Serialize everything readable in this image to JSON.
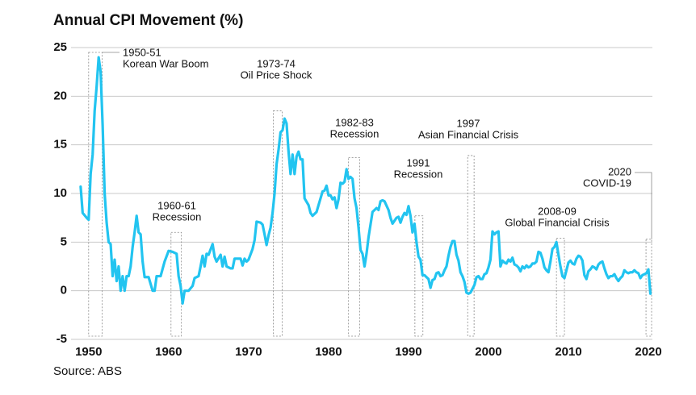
{
  "chart_data": {
    "type": "line",
    "title": "Annual CPI Movement (%)",
    "source": "Source: ABS",
    "xlim": [
      1947.8,
      2020.5
    ],
    "ylim": [
      -5,
      25
    ],
    "xticks": [
      1950,
      1960,
      1970,
      1980,
      1990,
      2000,
      2010,
      2020
    ],
    "yticks": [
      -5,
      0,
      5,
      10,
      15,
      20,
      25
    ],
    "grid": true,
    "series": [
      {
        "color": "#22c4f0",
        "x": [
          1949.0,
          1949.25,
          1949.75,
          1950.0,
          1950.25,
          1950.5,
          1950.75,
          1951.0,
          1951.25,
          1951.5,
          1951.75,
          1952.0,
          1952.25,
          1952.5,
          1952.75,
          1953.0,
          1953.25,
          1953.5,
          1953.75,
          1954.0,
          1954.25,
          1954.5,
          1954.75,
          1955.0,
          1955.25,
          1955.5,
          1955.75,
          1956.0,
          1956.25,
          1956.5,
          1956.75,
          1957.0,
          1957.5,
          1958.0,
          1958.25,
          1958.5,
          1959.0,
          1959.5,
          1960.0,
          1960.5,
          1961.0,
          1961.25,
          1961.5,
          1961.75,
          1962.0,
          1962.5,
          1963.0,
          1963.25,
          1963.75,
          1964.0,
          1964.25,
          1964.5,
          1964.75,
          1965.0,
          1965.5,
          1965.75,
          1966.0,
          1966.5,
          1966.75,
          1967.0,
          1967.25,
          1967.75,
          1968.0,
          1968.25,
          1968.75,
          1969.0,
          1969.25,
          1969.5,
          1969.75,
          1970.0,
          1970.5,
          1970.75,
          1971.0,
          1971.5,
          1971.75,
          1972.0,
          1972.25,
          1972.5,
          1972.75,
          1973.0,
          1973.25,
          1973.5,
          1973.75,
          1974.0,
          1974.25,
          1974.5,
          1974.75,
          1975.0,
          1975.25,
          1975.5,
          1975.75,
          1976.0,
          1976.25,
          1976.5,
          1976.75,
          1977.0,
          1977.5,
          1977.75,
          1978.0,
          1978.5,
          1978.75,
          1979.0,
          1979.25,
          1979.5,
          1979.75,
          1980.0,
          1980.25,
          1980.5,
          1980.75,
          1981.0,
          1981.25,
          1981.5,
          1981.75,
          1982.0,
          1982.25,
          1982.5,
          1982.75,
          1983.0,
          1983.25,
          1983.5,
          1983.75,
          1984.0,
          1984.25,
          1984.5,
          1984.75,
          1985.0,
          1985.25,
          1985.5,
          1985.75,
          1986.0,
          1986.25,
          1986.5,
          1986.75,
          1987.0,
          1987.5,
          1987.75,
          1988.0,
          1988.5,
          1988.75,
          1989.0,
          1989.25,
          1989.5,
          1989.75,
          1990.0,
          1990.25,
          1990.5,
          1990.75,
          1991.0,
          1991.25,
          1991.5,
          1991.75,
          1992.0,
          1992.5,
          1992.75,
          1993.0,
          1993.25,
          1993.5,
          1993.75,
          1994.0,
          1994.25,
          1994.5,
          1994.75,
          1995.0,
          1995.25,
          1995.5,
          1995.75,
          1996.0,
          1996.25,
          1996.5,
          1996.75,
          1997.0,
          1997.25,
          1997.5,
          1997.75,
          1998.0,
          1998.25,
          1998.5,
          1998.75,
          1999.0,
          1999.25,
          1999.5,
          1999.75,
          2000.0,
          2000.25,
          2000.5,
          2000.75,
          2001.0,
          2001.25,
          2001.5,
          2001.75,
          2002.0,
          2002.25,
          2002.5,
          2002.75,
          2003.0,
          2003.25,
          2003.5,
          2003.75,
          2004.0,
          2004.25,
          2004.5,
          2004.75,
          2005.0,
          2005.25,
          2005.5,
          2005.75,
          2006.0,
          2006.25,
          2006.5,
          2006.75,
          2007.0,
          2007.25,
          2007.5,
          2007.75,
          2008.0,
          2008.25,
          2008.5,
          2008.75,
          2009.0,
          2009.25,
          2009.5,
          2009.75,
          2010.0,
          2010.25,
          2010.5,
          2010.75,
          2011.0,
          2011.25,
          2011.5,
          2011.75,
          2012.0,
          2012.25,
          2012.5,
          2012.75,
          2013.0,
          2013.25,
          2013.5,
          2013.75,
          2014.0,
          2014.25,
          2014.5,
          2014.75,
          2015.0,
          2015.25,
          2015.5,
          2015.75,
          2016.0,
          2016.25,
          2016.5,
          2016.75,
          2017.0,
          2017.25,
          2017.5,
          2017.75,
          2018.0,
          2018.25,
          2018.5,
          2018.75,
          2019.0,
          2019.25,
          2019.5,
          2019.75,
          2020.0,
          2020.25
        ],
        "values": [
          10.7,
          8.0,
          7.5,
          7.3,
          12,
          14,
          18.5,
          21,
          24,
          22.5,
          17,
          10,
          7,
          5,
          4.8,
          1.5,
          3.2,
          1.0,
          2.5,
          0,
          1.5,
          0,
          1.5,
          1.5,
          2.5,
          4.5,
          6,
          7.7,
          6,
          5.8,
          3,
          1.4,
          1.4,
          0,
          0,
          1.5,
          1.5,
          3,
          4.1,
          4.0,
          3.8,
          1.5,
          0.5,
          -1.3,
          0,
          0,
          0.5,
          1.3,
          1.5,
          2.5,
          3.6,
          2.5,
          3.8,
          3.7,
          4.8,
          3.5,
          3.0,
          3.7,
          2.5,
          3.5,
          2.5,
          2.3,
          2.3,
          3.3,
          3.3,
          3.3,
          2.6,
          3.3,
          3.0,
          3.2,
          4.3,
          5.2,
          7.1,
          7.0,
          6.8,
          5.8,
          4.7,
          5.7,
          6.5,
          8,
          10,
          13,
          14.5,
          16.3,
          16.5,
          17.7,
          17.2,
          14.3,
          12,
          14,
          12,
          13.8,
          14.3,
          13.5,
          13.5,
          9.5,
          8.8,
          8.0,
          7.7,
          8.1,
          8.8,
          9.5,
          10.2,
          10.3,
          10.8,
          9.8,
          9.8,
          9.4,
          9.6,
          8.5,
          9.4,
          11.1,
          11.0,
          11.2,
          12.5,
          11.5,
          11.7,
          11.5,
          9.5,
          8.5,
          6.5,
          4.2,
          3.8,
          2.5,
          3.8,
          5.5,
          6.8,
          8.1,
          8.3,
          8.5,
          8.3,
          9.2,
          9.3,
          9.2,
          8.3,
          7.5,
          6.9,
          7.5,
          7.6,
          7.0,
          7.6,
          8.0,
          7.8,
          8.7,
          7.7,
          6.0,
          6.9,
          5.0,
          3.5,
          3.2,
          1.6,
          1.6,
          1.2,
          0.3,
          1.1,
          1.2,
          1.8,
          1.9,
          1.5,
          1.6,
          2.1,
          2.5,
          3.6,
          4.5,
          5.1,
          5.1,
          3.7,
          3.1,
          1.9,
          1.5,
          0.9,
          -0.2,
          -0.3,
          -0.2,
          0.2,
          0.6,
          1.4,
          1.5,
          1.2,
          1.2,
          1.7,
          1.8,
          2.4,
          3.2,
          6.1,
          5.8,
          6.0,
          6.1,
          2.5,
          3.1,
          2.9,
          2.8,
          3.2,
          3.0,
          3.4,
          2.7,
          2.6,
          2.4,
          2.0,
          2.5,
          2.3,
          2.6,
          2.4,
          2.5,
          2.8,
          2.8,
          3.0,
          4.0,
          3.9,
          3.3,
          2.4,
          2.1,
          1.9,
          3.0,
          4.3,
          4.5,
          5.0,
          3.7,
          2.5,
          1.5,
          1.3,
          2.1,
          2.9,
          3.1,
          2.8,
          2.7,
          3.3,
          3.6,
          3.5,
          3.1,
          1.6,
          1.2,
          2.0,
          2.2,
          2.5,
          2.4,
          2.2,
          2.7,
          2.9,
          3.0,
          2.3,
          1.7,
          1.3,
          1.5,
          1.5,
          1.7,
          1.3,
          1.0,
          1.3,
          1.5,
          2.1,
          1.9,
          1.8,
          1.9,
          1.9,
          2.1,
          1.9,
          1.8,
          1.3,
          1.6,
          1.7,
          1.8,
          2.2,
          -0.3
        ]
      }
    ],
    "annotations": [
      {
        "lines": [
          "1950-51",
          "Korean War Boom"
        ],
        "x": [
          1950.0,
          1951.7
        ],
        "top": 24.5
      },
      {
        "lines": [
          "1960-61",
          "Recession"
        ],
        "x": [
          1960.3,
          1961.6
        ],
        "top": 6.0
      },
      {
        "lines": [
          "1973-74",
          "Oil Price Shock"
        ],
        "x": [
          1973.1,
          1974.2
        ],
        "top": 18.5
      },
      {
        "lines": [
          "1982-83",
          "Recession"
        ],
        "x": [
          1982.5,
          1983.9
        ],
        "top": 13.7
      },
      {
        "lines": [
          "1991",
          "Recession"
        ],
        "x": [
          1990.8,
          1991.8
        ],
        "top": 7.7
      },
      {
        "lines": [
          "1997",
          "Asian Financial Crisis"
        ],
        "x": [
          1997.4,
          1998.2
        ],
        "top": 13.9
      },
      {
        "lines": [
          "2008-09",
          "Global Financial Crisis"
        ],
        "x": [
          2008.5,
          2009.5
        ],
        "top": 5.4
      },
      {
        "lines": [
          "2020",
          "COVID-19"
        ],
        "x": [
          2019.7,
          2020.4
        ],
        "top": 5.3
      }
    ]
  }
}
